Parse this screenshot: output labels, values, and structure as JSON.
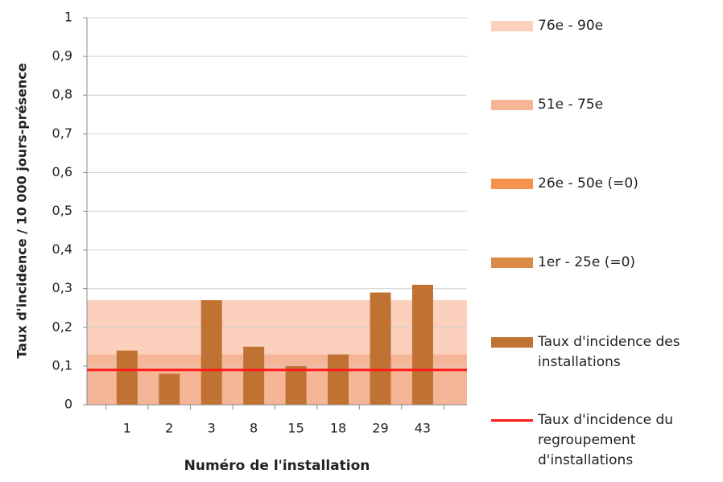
{
  "chart_data": {
    "type": "bar",
    "y_label": "Taux d'incidence / 10 000 jours-présence",
    "x_label": "Numéro de l'installation",
    "categories": [
      "1",
      "2",
      "3",
      "8",
      "15",
      "18",
      "29",
      "43"
    ],
    "ylim": [
      0,
      1
    ],
    "yticks": [
      0,
      {
        "value": 0.1,
        "label": "0,1"
      },
      {
        "value": 0.2,
        "label": "0,2"
      },
      {
        "value": 0.3,
        "label": "0,3"
      },
      {
        "value": 0.4,
        "label": "0,4"
      },
      {
        "value": 0.5,
        "label": "0,5"
      },
      {
        "value": 0.6,
        "label": "0,6"
      },
      {
        "value": 0.7,
        "label": "0,7"
      },
      {
        "value": 0.8,
        "label": "0,8"
      },
      {
        "value": 0.9,
        "label": "0,9"
      },
      1
    ],
    "grid": true,
    "bands": [
      {
        "name": "76e - 90e",
        "color": "#fbd0bc",
        "value": 0.14
      },
      {
        "name": "51e - 75e",
        "color": "#f5b597",
        "value": 0.13
      },
      {
        "name": "26e - 50e (=0)",
        "color": "#f4944c",
        "value": 0
      },
      {
        "name": "1er - 25e (=0)",
        "color": "#dc8a48",
        "value": 0
      }
    ],
    "series": [
      {
        "name": "Taux d'incidence des installations",
        "color": "#bf7232",
        "values": [
          0.14,
          0.08,
          0.27,
          0.15,
          0.1,
          0.13,
          0.29,
          0.31
        ]
      }
    ],
    "reference_line": {
      "name": "Taux d'incidence du regroupement d'installations",
      "color": "#ff1a1a",
      "value": 0.09
    }
  }
}
